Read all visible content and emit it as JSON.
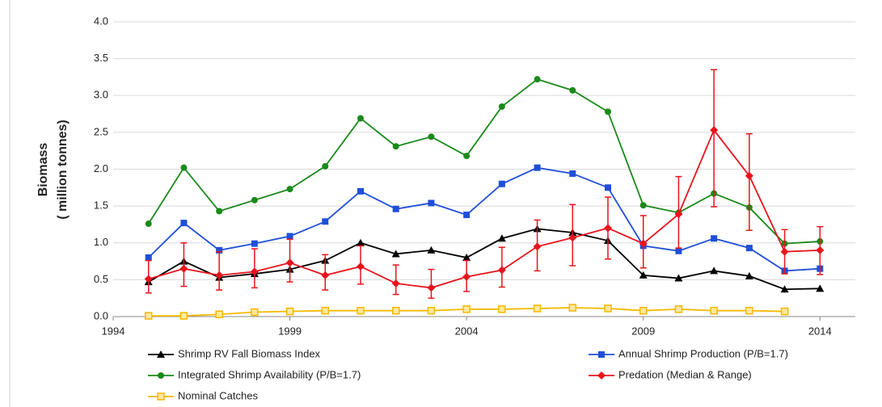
{
  "chart_data": {
    "type": "line",
    "ylabel": [
      "Biomass",
      "( million tonnes)"
    ],
    "x": [
      1995,
      1996,
      1997,
      1998,
      1999,
      2000,
      2001,
      2002,
      2003,
      2004,
      2005,
      2006,
      2007,
      2008,
      2009,
      2010,
      2011,
      2012,
      2013,
      2014
    ],
    "xlim": [
      1994,
      2015
    ],
    "xticks": [
      1994,
      1999,
      2004,
      2009,
      2014
    ],
    "ylim": [
      0,
      4
    ],
    "yticks": [
      {
        "value": 0,
        "label": "0.0"
      },
      0.5,
      {
        "value": 1,
        "label": "1.0"
      },
      1.5,
      {
        "value": 2,
        "label": "2.0"
      },
      2.5,
      {
        "value": 3,
        "label": "3.0"
      },
      3.5,
      {
        "value": 4,
        "label": "4.0"
      }
    ],
    "grid": true,
    "series": [
      {
        "name": "Shrimp RV Fall Biomass Index",
        "color": "#000000",
        "marker": "triangle",
        "values": [
          0.47,
          0.75,
          0.53,
          0.58,
          0.64,
          0.76,
          1.0,
          0.85,
          0.9,
          0.8,
          1.06,
          1.19,
          1.14,
          1.03,
          0.56,
          0.52,
          0.62,
          0.55,
          0.37,
          0.38
        ]
      },
      {
        "name": "Annual Shrimp Production (P/B=1.7)",
        "color": "#1f4fd8",
        "marker": "square",
        "values": [
          0.8,
          1.27,
          0.9,
          0.99,
          1.09,
          1.29,
          1.7,
          1.46,
          1.54,
          1.38,
          1.8,
          2.02,
          1.94,
          1.75,
          0.96,
          0.89,
          1.06,
          0.93,
          0.62,
          0.65
        ]
      },
      {
        "name": "Integrated Shrimp Availability (P/B=1.7)",
        "color": "#1a8a1a",
        "marker": "circle",
        "values": [
          1.26,
          2.02,
          1.43,
          1.58,
          1.73,
          2.04,
          2.69,
          2.31,
          2.44,
          2.18,
          2.85,
          3.22,
          3.07,
          2.78,
          1.51,
          1.41,
          1.67,
          1.48,
          0.99,
          1.02
        ]
      },
      {
        "name": "Predation (Median & Range)",
        "color": "#e8141c",
        "marker": "diamond",
        "values": [
          0.51,
          0.65,
          0.56,
          0.61,
          0.73,
          0.56,
          0.68,
          0.45,
          0.39,
          0.54,
          0.63,
          0.95,
          1.07,
          1.2,
          0.99,
          1.39,
          2.53,
          1.91,
          0.88,
          0.9
        ],
        "low": [
          0.32,
          0.41,
          0.36,
          0.39,
          0.47,
          0.36,
          0.44,
          0.3,
          0.25,
          0.34,
          0.4,
          0.62,
          0.69,
          0.78,
          0.66,
          0.93,
          1.49,
          1.17,
          0.58,
          0.57
        ],
        "high": [
          0.76,
          1.0,
          0.88,
          0.92,
          1.05,
          0.84,
          0.96,
          0.7,
          0.64,
          0.76,
          0.94,
          1.31,
          1.52,
          1.62,
          1.37,
          1.9,
          3.35,
          2.48,
          1.18,
          1.22
        ]
      },
      {
        "name": "Nominal Catches",
        "color": "#f5b800",
        "marker": "square-open",
        "values": [
          0.01,
          0.01,
          0.03,
          0.06,
          0.07,
          0.08,
          0.08,
          0.08,
          0.08,
          0.1,
          0.1,
          0.11,
          0.12,
          0.11,
          0.08,
          0.1,
          0.08,
          0.08,
          0.07,
          null
        ]
      }
    ]
  }
}
